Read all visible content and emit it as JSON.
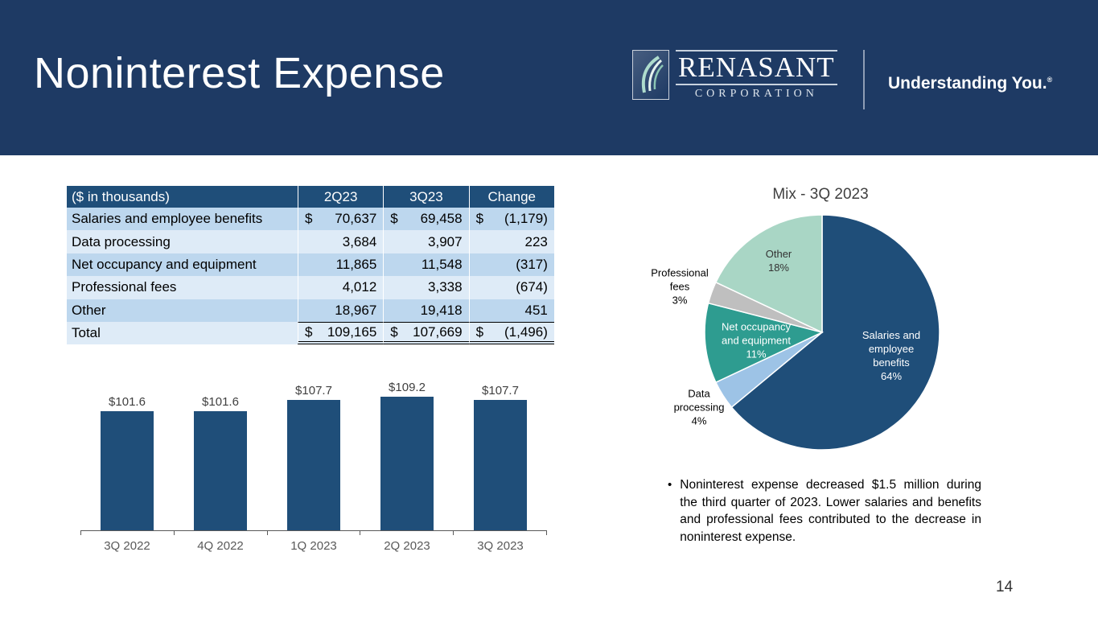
{
  "header": {
    "title": "Noninterest Expense",
    "logo": {
      "name": "RENASANT",
      "subtitle": "CORPORATION",
      "tagline": "Understanding You.",
      "trademark": "®"
    }
  },
  "table": {
    "col_headers": [
      "($ in thousands)",
      "2Q23",
      "3Q23",
      "Change"
    ],
    "rows": [
      {
        "label": "Salaries and employee benefits",
        "c": [
          {
            "d": "$",
            "v": "70,637"
          },
          {
            "d": "$",
            "v": "69,458"
          },
          {
            "d": "$",
            "v": "(1,179)"
          }
        ]
      },
      {
        "label": "Data processing",
        "c": [
          {
            "d": "",
            "v": "3,684"
          },
          {
            "d": "",
            "v": "3,907"
          },
          {
            "d": "",
            "v": "223"
          }
        ]
      },
      {
        "label": "Net occupancy and equipment",
        "c": [
          {
            "d": "",
            "v": "11,865"
          },
          {
            "d": "",
            "v": "11,548"
          },
          {
            "d": "",
            "v": "(317)"
          }
        ]
      },
      {
        "label": "Professional fees",
        "c": [
          {
            "d": "",
            "v": "4,012"
          },
          {
            "d": "",
            "v": "3,338"
          },
          {
            "d": "",
            "v": "(674)"
          }
        ]
      },
      {
        "label": "Other",
        "c": [
          {
            "d": "",
            "v": "18,967"
          },
          {
            "d": "",
            "v": "19,418"
          },
          {
            "d": "",
            "v": "451"
          }
        ]
      },
      {
        "label": "Total",
        "c": [
          {
            "d": "$",
            "v": "109,165"
          },
          {
            "d": "$",
            "v": "107,669"
          },
          {
            "d": "$",
            "v": "(1,496)"
          }
        ]
      }
    ]
  },
  "chart_data": [
    {
      "type": "bar",
      "title": "",
      "xlabel": "",
      "ylabel": "",
      "categories": [
        "3Q 2022",
        "4Q 2022",
        "1Q 2023",
        "2Q 2023",
        "3Q 2023"
      ],
      "values": [
        101.6,
        101.6,
        107.7,
        109.2,
        107.7
      ],
      "value_labels": [
        "$101.6",
        "$101.6",
        "$107.7",
        "$109.2",
        "$107.7"
      ],
      "bar_color": "#1F4E79",
      "ylim": [
        40,
        115
      ],
      "grid": false,
      "legend": false
    },
    {
      "type": "pie",
      "title": "Mix - 3Q 2023",
      "slices": [
        {
          "name": "Salaries and employee benefits",
          "pct": 64,
          "color": "#1F4E79"
        },
        {
          "name": "Data processing",
          "pct": 4,
          "color": "#9DC3E6"
        },
        {
          "name": "Net occupancy and equipment",
          "pct": 11,
          "color": "#2E9C90"
        },
        {
          "name": "Professional fees",
          "pct": 3,
          "color": "#BFBFBF"
        },
        {
          "name": "Other",
          "pct": 18,
          "color": "#A9D6C5"
        }
      ],
      "labels": {
        "salaries": "Salaries and\nemployee\nbenefits\n64%",
        "data_processing": "Data\nprocessing\n4%",
        "net_occupancy": "Net occupancy\nand equipment\n11%",
        "professional": "Professional\nfees\n3%",
        "other": "Other\n18%"
      }
    }
  ],
  "commentary": {
    "bullet_marker": "•",
    "bullet": "Noninterest expense decreased $1.5 million during the third quarter of 2023. Lower salaries and benefits and professional fees contributed to the decrease in noninterest expense."
  },
  "footer": {
    "page_number": "14"
  }
}
